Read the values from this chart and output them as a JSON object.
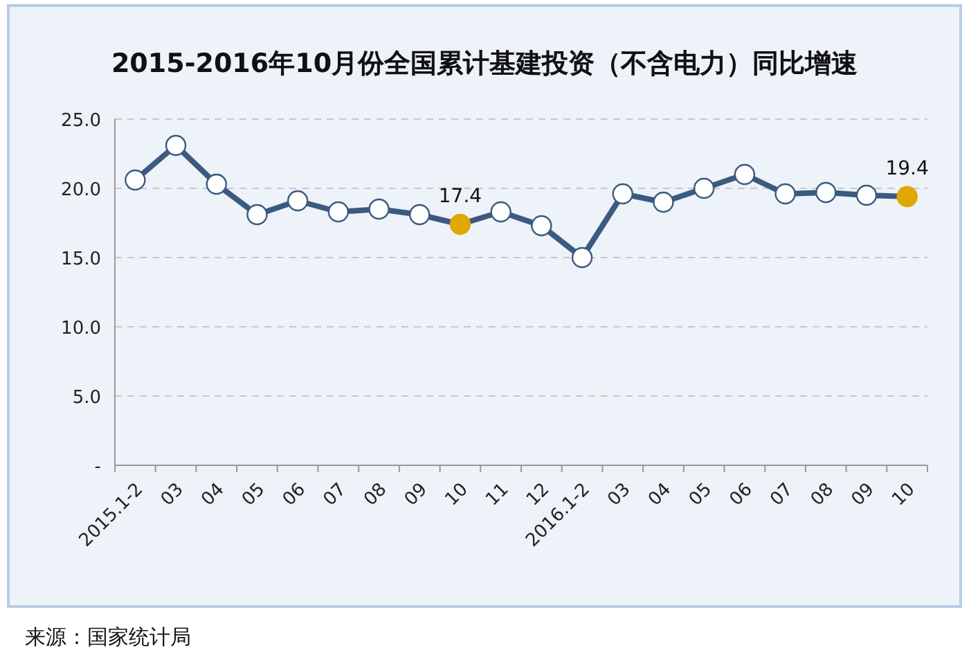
{
  "chart_data": {
    "type": "line",
    "title": "2015-2016年10月份全国累计基建投资（不含电力）同比增速",
    "categories": [
      "2015.1-2",
      "03",
      "04",
      "05",
      "06",
      "07",
      "08",
      "09",
      "10",
      "11",
      "12",
      "2016.1-2",
      "03",
      "04",
      "05",
      "06",
      "07",
      "08",
      "09",
      "10"
    ],
    "series": [
      {
        "color": "#3b5a80",
        "colors": [
          "#ffffff",
          "#ffffff",
          "#ffffff",
          "#ffffff",
          "#ffffff",
          "#ffffff",
          "#ffffff",
          "#ffffff",
          "#e0a800",
          "#ffffff",
          "#ffffff",
          "#ffffff",
          "#ffffff",
          "#ffffff",
          "#ffffff",
          "#ffffff",
          "#ffffff",
          "#ffffff",
          "#ffffff",
          "#e0a800"
        ],
        "values": [
          20.6,
          23.1,
          20.3,
          18.1,
          19.1,
          18.3,
          18.5,
          18.1,
          17.4,
          18.3,
          17.3,
          15.0,
          19.6,
          19.0,
          20.0,
          21.0,
          19.6,
          19.7,
          19.5,
          19.4
        ],
        "value_labels": [
          null,
          null,
          null,
          null,
          null,
          null,
          null,
          null,
          "17.4",
          null,
          null,
          null,
          null,
          null,
          null,
          null,
          null,
          null,
          null,
          "19.4"
        ]
      }
    ],
    "ylim": [
      0,
      25
    ],
    "yticks": [
      {
        "value": 0,
        "label": "-"
      },
      {
        "value": 5,
        "label": "5.0"
      },
      {
        "value": 10,
        "label": "10.0"
      },
      {
        "value": 15,
        "label": "15.0"
      },
      {
        "value": 20,
        "label": "20.0"
      },
      {
        "value": 25,
        "label": "25.0"
      }
    ],
    "grid": "y",
    "marker": "circle",
    "line_style": "solid",
    "annotations": [
      "来源：国家统计局"
    ]
  }
}
